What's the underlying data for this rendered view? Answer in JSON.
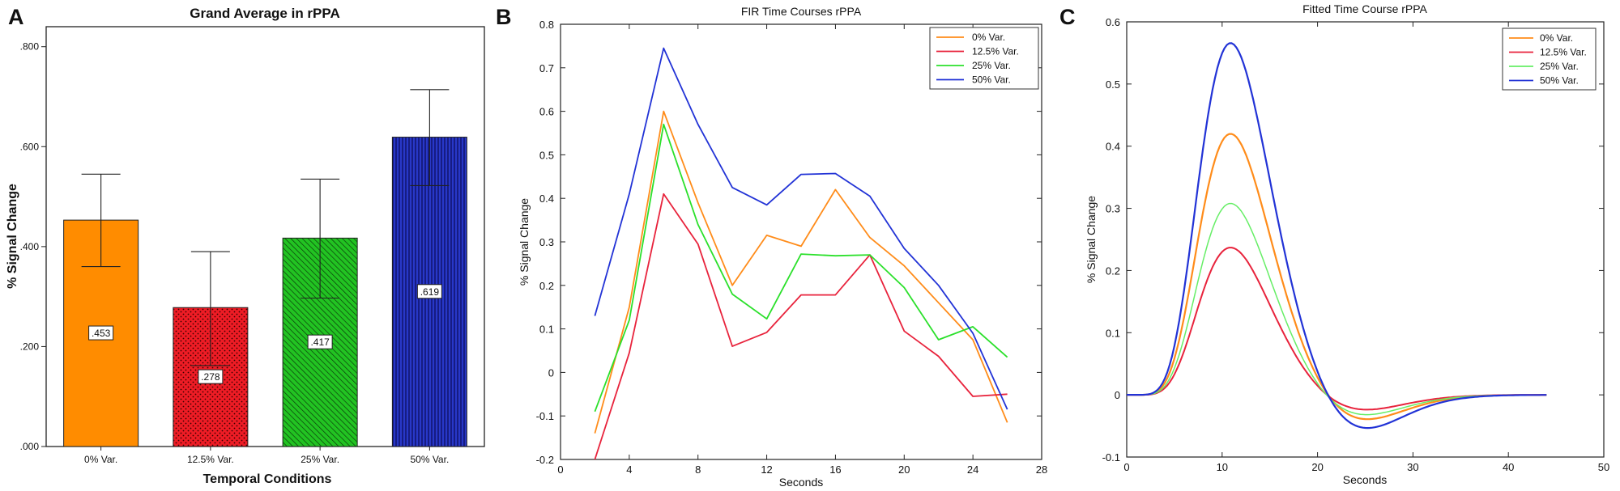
{
  "figure": {
    "panels": [
      {
        "letter": "A"
      },
      {
        "letter": "B"
      },
      {
        "letter": "C"
      }
    ]
  },
  "chart_data": [
    {
      "type": "bar",
      "title": "Grand Average in rPPA",
      "xlabel": "Temporal Conditions",
      "ylabel": "% Signal Change",
      "categories": [
        "0% Var.",
        "12.5% Var.",
        "25% Var.",
        "50% Var."
      ],
      "values": [
        0.453,
        0.278,
        0.417,
        0.619
      ],
      "value_labels": [
        ".453",
        ".278",
        ".417",
        ".619"
      ],
      "error_upper": [
        0.545,
        0.39,
        0.535,
        0.714
      ],
      "error_lower": [
        0.36,
        0.162,
        0.297,
        0.522
      ],
      "colors": [
        "#FF8C00",
        "#EE1C25",
        "#1DB41D",
        "#1F2FB5"
      ],
      "patterns": [
        "solid",
        "dots",
        "diagonal",
        "vertical"
      ],
      "ylim": [
        0,
        0.84
      ],
      "yticks": [
        0,
        0.2,
        0.4,
        0.6,
        0.8
      ],
      "ytick_labels": [
        ".000",
        ".200",
        ".400",
        ".600",
        ".800"
      ],
      "grid": false
    },
    {
      "type": "line",
      "title": "FIR Time Courses rPPA",
      "xlabel": "Seconds",
      "ylabel": "% Signal Change",
      "x": [
        2,
        4,
        6,
        8,
        10,
        12,
        14,
        16,
        18,
        20,
        22,
        24,
        26
      ],
      "series": [
        {
          "name": "0% Var.",
          "color": "#FF8C1A",
          "values": [
            -0.14,
            0.15,
            0.6,
            0.39,
            0.2,
            0.315,
            0.29,
            0.42,
            0.31,
            0.245,
            0.16,
            0.075,
            -0.115
          ]
        },
        {
          "name": "12.5% Var.",
          "color": "#E8233C",
          "values": [
            -0.2,
            0.045,
            0.41,
            0.295,
            0.06,
            0.092,
            0.178,
            0.178,
            0.27,
            0.095,
            0.037,
            -0.055,
            -0.05
          ]
        },
        {
          "name": "25% Var.",
          "color": "#2BE02B",
          "values": [
            -0.09,
            0.12,
            0.57,
            0.34,
            0.18,
            0.123,
            0.272,
            0.268,
            0.27,
            0.195,
            0.075,
            0.105,
            0.035
          ]
        },
        {
          "name": "50% Var.",
          "color": "#2233D6",
          "values": [
            0.13,
            0.41,
            0.745,
            0.57,
            0.425,
            0.385,
            0.455,
            0.457,
            0.405,
            0.285,
            0.2,
            0.09,
            -0.085
          ]
        }
      ],
      "xlim": [
        0,
        28
      ],
      "ylim": [
        -0.2,
        0.8
      ],
      "xticks": [
        0,
        4,
        8,
        12,
        16,
        20,
        24,
        28
      ],
      "yticks": [
        -0.2,
        -0.1,
        0,
        0.1,
        0.2,
        0.3,
        0.4,
        0.5,
        0.6,
        0.7,
        0.8
      ],
      "legend_position": "top-right",
      "grid": false
    },
    {
      "type": "line",
      "title": "Fitted Time Course rPPA",
      "xlabel": "Seconds",
      "ylabel": "% Signal Change",
      "model": "double-gamma hemodynamic response, sampled 0-44 s",
      "x_range": [
        0,
        44
      ],
      "series": [
        {
          "name": "0% Var.",
          "color": "#FF8C1A",
          "peak": 0.42,
          "peak_time": 12.2,
          "undershoot": -0.05,
          "undershoot_time": 24.5,
          "lw": 2.2
        },
        {
          "name": "12.5% Var.",
          "color": "#E8233C",
          "peak": 0.237,
          "peak_time": 12.2,
          "undershoot": -0.03,
          "undershoot_time": 24.5,
          "lw": 2.0
        },
        {
          "name": "25% Var.",
          "color": "#66EE66",
          "peak": 0.308,
          "peak_time": 12.2,
          "undershoot": -0.04,
          "undershoot_time": 24.5,
          "lw": 1.5
        },
        {
          "name": "50% Var.",
          "color": "#2233D6",
          "peak": 0.566,
          "peak_time": 12.2,
          "undershoot": -0.068,
          "undershoot_time": 24.5,
          "lw": 2.2
        }
      ],
      "xlim": [
        0,
        50
      ],
      "ylim": [
        -0.1,
        0.6
      ],
      "xticks": [
        0,
        10,
        20,
        30,
        40,
        50
      ],
      "yticks": [
        -0.1,
        0,
        0.1,
        0.2,
        0.3,
        0.4,
        0.5,
        0.6
      ],
      "legend_position": "top-right",
      "grid": false
    }
  ]
}
